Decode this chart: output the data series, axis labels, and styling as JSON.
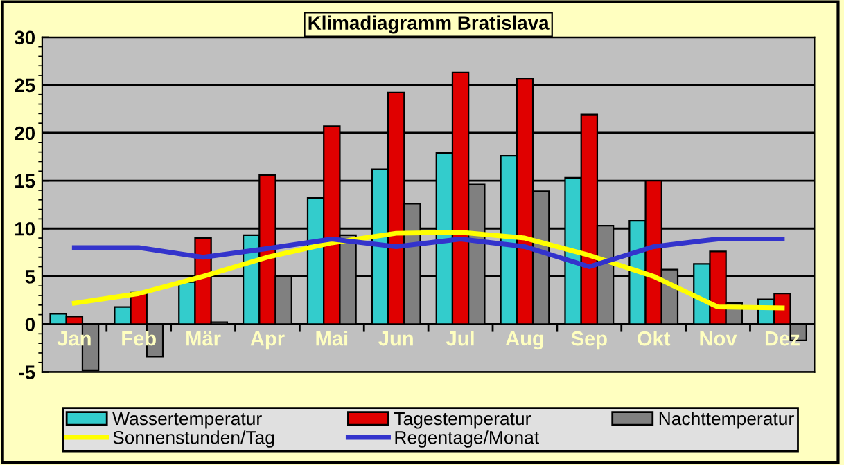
{
  "chart_data": {
    "type": "bar",
    "title": "Klimadiagramm Bratislava",
    "categories": [
      "Jan",
      "Feb",
      "Mär",
      "Apr",
      "Mai",
      "Jun",
      "Jul",
      "Aug",
      "Sep",
      "Okt",
      "Nov",
      "Dez"
    ],
    "series": [
      {
        "name": "Wassertemperatur",
        "color": "#33cccc",
        "values": [
          1.1,
          1.8,
          4.4,
          9.3,
          13.2,
          16.2,
          17.9,
          17.6,
          15.3,
          10.8,
          6.3,
          2.6
        ]
      },
      {
        "name": "Tagestemperatur",
        "color": "#e00000",
        "values": [
          0.8,
          3.3,
          9.0,
          15.6,
          20.7,
          24.2,
          26.3,
          25.7,
          21.9,
          15.0,
          7.6,
          3.2
        ]
      },
      {
        "name": "Nachttemperatur",
        "color": "#808080",
        "values": [
          -4.8,
          -3.4,
          0.2,
          5.0,
          9.3,
          12.6,
          14.6,
          13.9,
          10.3,
          5.7,
          2.2,
          -1.7
        ]
      },
      {
        "name": "Sonnenstunden/Tag",
        "type": "line",
        "color": "#ffff00",
        "values": [
          2.2,
          3.2,
          5.0,
          7.0,
          8.5,
          9.5,
          9.6,
          9.0,
          7.2,
          5.0,
          1.8,
          1.7
        ]
      },
      {
        "name": "Regentage/Monat",
        "type": "line",
        "color": "#3333cc",
        "values": [
          8.0,
          8.0,
          7.0,
          7.9,
          8.9,
          8.1,
          8.9,
          8.1,
          6.0,
          8.1,
          8.9,
          8.9
        ]
      }
    ],
    "ylim": [
      -5,
      30
    ],
    "yticks": [
      -5,
      0,
      5,
      10,
      15,
      20,
      25,
      30
    ],
    "grid": "y",
    "legend": "bottom",
    "marker": "none",
    "line_style": "solid"
  }
}
